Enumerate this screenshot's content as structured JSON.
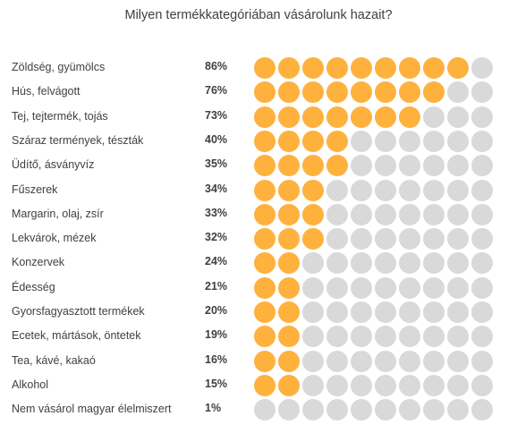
{
  "chart_data": {
    "type": "dot-matrix",
    "title": "Milyen termékkategóriában vásárolunk hazait?",
    "dots_per_row": 10,
    "fill_color": "#ffb13d",
    "empty_color": "#d9d9d9",
    "categories": [
      "Zöldség, gyümölcs",
      "Hús, felvágott",
      "Tej, tejtermék, tojás",
      "Száraz termények, tészták",
      "Üdítő, ásványvíz",
      "Fűszerek",
      "Margarin, olaj, zsír",
      "Lekvárok, mézek",
      "Konzervek",
      "Édesség",
      "Gyorsfagyasztott termékek",
      "Ecetek, mártások, öntetek",
      "Tea, kávé, kakaó",
      "Alkohol",
      "Nem vásárol magyar élelmiszert"
    ],
    "value_labels": [
      "86%",
      "76%",
      "73%",
      "40%",
      "35%",
      "34%",
      "33%",
      "32%",
      "24%",
      "21%",
      "20%",
      "19%",
      "16%",
      "15%",
      "1%"
    ],
    "values": [
      86,
      76,
      73,
      40,
      35,
      34,
      33,
      32,
      24,
      21,
      20,
      19,
      16,
      15,
      1
    ],
    "filled_dots": [
      9,
      8,
      7,
      4,
      4,
      3,
      3,
      3,
      2,
      2,
      2,
      2,
      2,
      2,
      0
    ]
  }
}
